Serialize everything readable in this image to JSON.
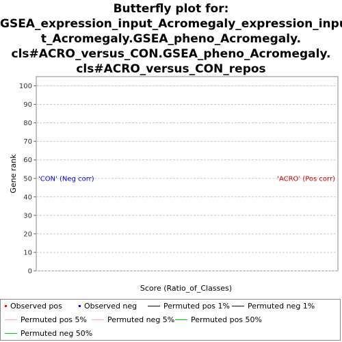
{
  "chart_data": {
    "type": "line",
    "title_lines": [
      "Butterfly plot for:",
      "GSEA_expression_input_Acromegaly_expression_inpu",
      "t_Acromegaly.GSEA_pheno_Acromegaly.",
      "cls#ACRO_versus_CON.GSEA_pheno_Acromegaly.",
      "cls#ACRO_versus_CON_repos"
    ],
    "xlabel": "Score (Ratio_of_Classes)",
    "ylabel": "Gene rank",
    "ylim": [
      0,
      105
    ],
    "yticks": [
      "0",
      "10",
      "20",
      "30",
      "40",
      "50",
      "60",
      "70",
      "80",
      "90",
      "100"
    ],
    "grid": true,
    "annotations": {
      "neg": {
        "text": "'CON' (Neg corr)",
        "color": "#0000cc",
        "y": 50
      },
      "pos": {
        "text": "'ACRO' (Pos corr)",
        "color": "#cc0000",
        "y": 50
      }
    },
    "legend": {
      "placement": "bottom",
      "items": [
        {
          "label": "Observed pos",
          "symbol": "dot",
          "color": "#ff0000"
        },
        {
          "label": "Observed neg",
          "symbol": "dot",
          "color": "#0000ff"
        },
        {
          "label": "Permuted pos 1%",
          "symbol": "line",
          "color": "#000000"
        },
        {
          "label": "Permuted neg 1%",
          "symbol": "line",
          "color": "#000000"
        },
        {
          "label": "Permuted pos 5%",
          "symbol": "line",
          "color": "#ffaaaa"
        },
        {
          "label": "Permuted neg 5%",
          "symbol": "line",
          "color": "#ffaaaa"
        },
        {
          "label": "Permuted pos 50%",
          "symbol": "line",
          "color": "#00cc00"
        },
        {
          "label": "Permuted neg 50%",
          "symbol": "line",
          "color": "#00cc00"
        }
      ]
    },
    "series": []
  }
}
